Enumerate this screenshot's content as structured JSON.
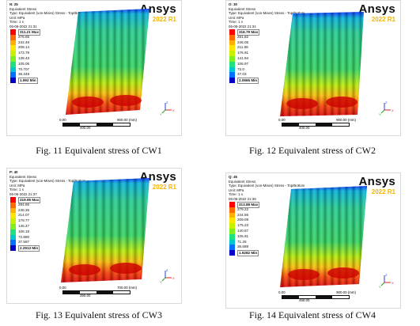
{
  "brand": {
    "name": "Ansys",
    "version": "2022 R1"
  },
  "panels": [
    {
      "hdr": [
        "N: 25",
        "Equivalent Stress",
        "Type: Equivalent (von-Mises) Stress - Top/Bottom",
        "Unit: MPa",
        "Time: 1 s",
        "06-06-2022 21:31"
      ],
      "legend": [
        "311.21 Max",
        "276.65",
        "242.49",
        "208.14",
        "173.79",
        "139.43",
        "105.06",
        "70.707",
        "36.349",
        "1.992 Min"
      ],
      "scale": {
        "start": "0.00",
        "end": "900.00 (mm)",
        "mid": "400.00"
      },
      "caption": "Fig. 11 Equivalent stress of CW1"
    },
    {
      "hdr": [
        "O: 30",
        "Equivalent Stress",
        "Type: Equivalent (von-Mises) Stress - Top/Bottom",
        "Unit: MPa",
        "Time: 1 s",
        "06-06-2022 21:34"
      ],
      "legend": [
        "316.79 Max",
        "281.82",
        "246.05",
        "211.08",
        "176.91",
        "141.94",
        "106.97",
        "72.0",
        "37.03",
        "2.0665 Min"
      ],
      "scale": {
        "start": "0.00",
        "end": "900.00 (mm)",
        "mid": "400.00"
      },
      "caption": "Fig. 12 Equivalent stress of CW2"
    },
    {
      "hdr": [
        "P: 40",
        "Equivalent Stress",
        "Type: Equivalent (von-Mises) Stress - Top/Bottom",
        "Unit: MPa",
        "Time: 1 s",
        "06-06-2022 21:37"
      ],
      "legend": [
        "319.95 Max",
        "284.66",
        "248.36",
        "214.07",
        "179.77",
        "145.47",
        "108.18",
        "72.880",
        "37.587",
        "2.2913 Min"
      ],
      "scale": {
        "start": "0.00",
        "end": "700.00 (mm)",
        "mid": "350.00"
      },
      "caption": "Fig. 13 Equivalent stress of CW3"
    },
    {
      "hdr": [
        "Q: 45",
        "Equivalent Stress",
        "Type: Equivalent (von-Mises) Stress - Top/Bottom",
        "Unit: MPa",
        "Time: 1 s",
        "06-06-2022 21:39"
      ],
      "legend": [
        "313.88 Max",
        "279.22",
        "244.56",
        "209.09",
        "175.23",
        "140.57",
        "105.91",
        "71.25",
        "36.589",
        "1.9282 Min"
      ],
      "scale": {
        "start": "0.00",
        "end": "900.00 (mm)",
        "mid": "450.00"
      },
      "caption": "Fig. 14 Equivalent stress of CW4"
    }
  ],
  "legend_colors": [
    "#ff0000",
    "#ff6a00",
    "#ffb000",
    "#ffe600",
    "#c8f000",
    "#7cf020",
    "#20e080",
    "#00c8d0",
    "#0070ff",
    "#0000c8"
  ],
  "triad_labels": {
    "x": "X",
    "y": "Y",
    "z": "Z"
  },
  "triad_colors": {
    "x": "#e02020",
    "y": "#20a020",
    "z": "#2040e0"
  }
}
